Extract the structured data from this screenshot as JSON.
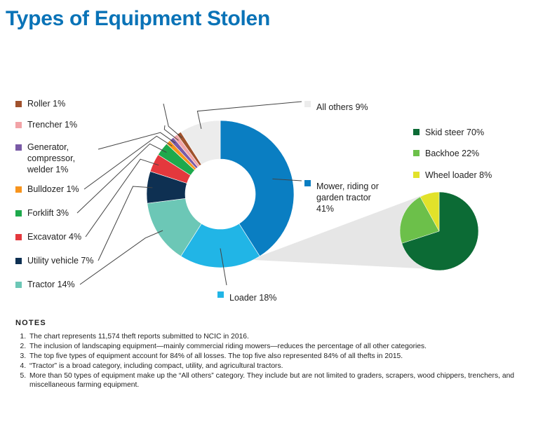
{
  "title": "Types of Equipment Stolen",
  "chart_data": [
    {
      "type": "pie",
      "variant": "donut",
      "unit": "%",
      "slices": [
        {
          "label": "Mower, riding or garden tractor 41%",
          "value": 41,
          "color": "#0a7ec2"
        },
        {
          "label": "Loader 18%",
          "value": 18,
          "color": "#21b5e6"
        },
        {
          "label": "Tractor 14%",
          "value": 14,
          "color": "#6cc7b6"
        },
        {
          "label": "Utility vehicle 7%",
          "value": 7,
          "color": "#0e3052"
        },
        {
          "label": "Excavator 4%",
          "value": 4,
          "color": "#e4383d"
        },
        {
          "label": "Forklift 3%",
          "value": 3,
          "color": "#1ea94c"
        },
        {
          "label": "Bulldozer 1%",
          "value": 1,
          "color": "#f7941d"
        },
        {
          "label": "Generator, compressor, welder  1%",
          "value": 1,
          "color": "#7a5aa6"
        },
        {
          "label": "Trencher 1%",
          "value": 1,
          "color": "#f2a3a7"
        },
        {
          "label": "Roller 1%",
          "value": 1,
          "color": "#a0522d"
        },
        {
          "label": "All others 9%",
          "value": 9,
          "color": "#ececec"
        }
      ]
    },
    {
      "type": "pie",
      "breakdown_of": "Loader 18%",
      "unit": "%",
      "slices": [
        {
          "label": "Skid steer 70%",
          "value": 70,
          "color": "#0c6b35"
        },
        {
          "label": "Backhoe 22%",
          "value": 22,
          "color": "#6cc04a"
        },
        {
          "label": "Wheel loader 8%",
          "value": 8,
          "color": "#e2e22a"
        }
      ]
    }
  ],
  "notes": {
    "heading": "NOTES",
    "items": [
      "The chart represents 11,574 theft reports submitted to NCIC in 2016.",
      "The inclusion of landscaping equipment—mainly commercial riding mowers—reduces the percentage of all other categories.",
      "The top five types of equipment account for 84% of all losses. The top five also represented 84% of all thefts in 2015.",
      "“Tractor” is a broad category, including compact, utility, and agricultural tractors.",
      "More than 50 types of equipment make up the “All others” category. They include but are not limited to graders, scrapers, wood chippers, trenchers, and miscellaneous farming equipment."
    ]
  }
}
